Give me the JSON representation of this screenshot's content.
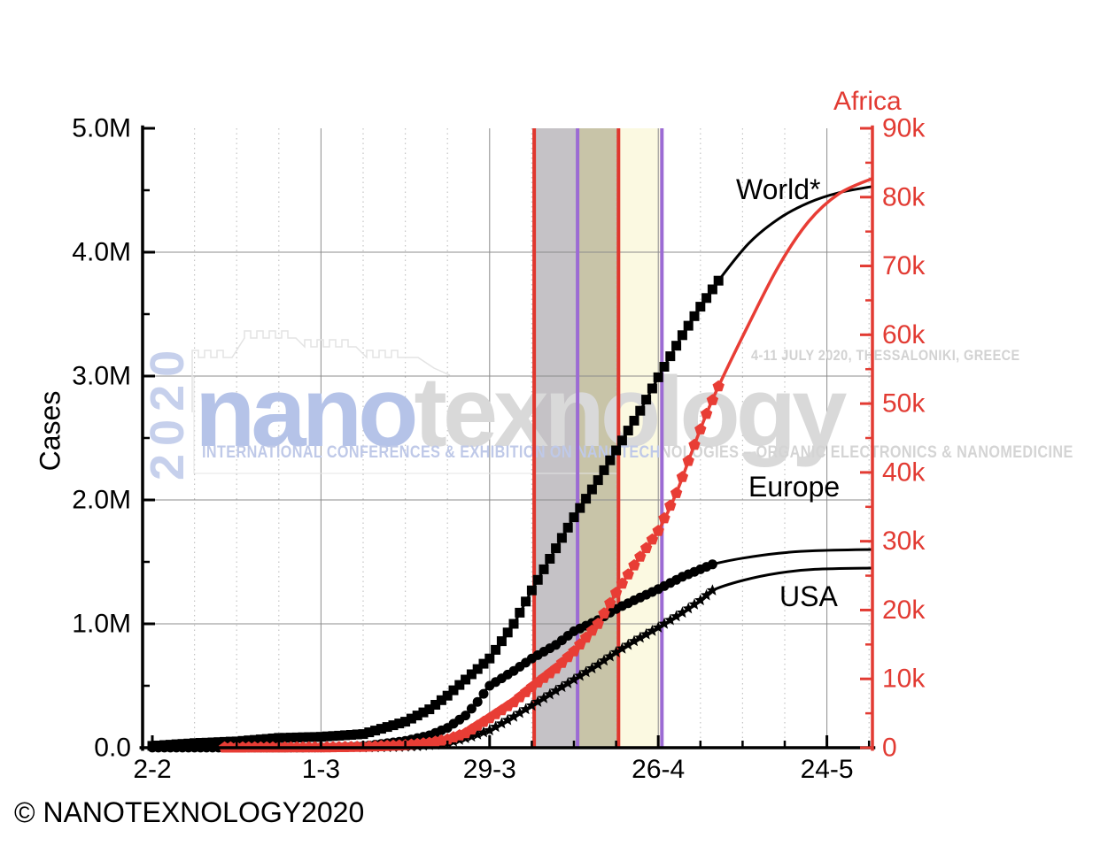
{
  "page": {
    "footer": "© NANOTEXNOLOGY2020",
    "background": "#ffffff"
  },
  "watermark": {
    "year_vertical": "2020",
    "logo_primary": "nano",
    "logo_secondary": "texnology",
    "subtitle_primary": "INTERNATIONAL CONFERENCES & EXHIBITION ON NANOTECH",
    "subtitle_secondary": "NOLOGIES – ORGANIC ELECTRONICS & NANOMEDICINE",
    "event_info": "4-11 JULY 2020, THESSALONIKI, GREECE",
    "colors": {
      "blue": "#b5c3e8",
      "gray": "#d9d9d9"
    }
  },
  "chart_data": {
    "type": "line",
    "title": "",
    "x_axis": {
      "tick_labels": [
        "2-2",
        "1-3",
        "29-3",
        "26-4",
        "24-5"
      ],
      "tick_days": [
        0,
        28,
        56,
        84,
        112
      ],
      "minor_step_days": 7,
      "note": "dates are day-month 2020; day 0 = 2-2"
    },
    "y_left": {
      "label": "Cases",
      "tick_labels": [
        "0.0",
        "1.0M",
        "2.0M",
        "3.0M",
        "4.0M",
        "5.0M"
      ],
      "tick_values": [
        0,
        1,
        2,
        3,
        4,
        5
      ],
      "minor_step": 0.5,
      "max": 5,
      "unit": "millions of cases",
      "color": "#000000"
    },
    "y_right": {
      "label": "Africa",
      "tick_labels": [
        "0",
        "10k",
        "20k",
        "30k",
        "40k",
        "50k",
        "60k",
        "70k",
        "80k",
        "90k"
      ],
      "tick_values": [
        0,
        10,
        20,
        30,
        40,
        50,
        60,
        70,
        80,
        90
      ],
      "minor_step": 5,
      "max": 90,
      "unit": "thousands of cases",
      "color": "#e23b33"
    },
    "bands": [
      {
        "from_day": 63.4,
        "to_day": 70.6,
        "color": "#c5c2c6",
        "from_date": "5-4",
        "to_date": "12-4"
      },
      {
        "from_day": 70.6,
        "to_day": 77.4,
        "color": "#c8c4a8",
        "from_date": "12-4",
        "to_date": "19-4"
      },
      {
        "from_day": 77.4,
        "to_day": 84.6,
        "color": "#fbf9e1",
        "from_date": "19-4",
        "to_date": "26-4"
      }
    ],
    "vlines": [
      {
        "day": 63.4,
        "date": "5-4",
        "color": "#e0372e"
      },
      {
        "day": 70.6,
        "date": "12-4",
        "color": "#9c6bd4"
      },
      {
        "day": 77.4,
        "date": "19-4",
        "color": "#e0372e"
      },
      {
        "day": 84.6,
        "date": "26-4",
        "color": "#9c6bd4"
      }
    ],
    "grid": {
      "h_major": true,
      "v_major_solid": true,
      "v_minor_dotted": true
    },
    "legend_position": "labels beside curves",
    "series": [
      {
        "name": "World*",
        "axis": "left",
        "unit": "M",
        "color": "#000000",
        "marker": "square",
        "marker_start_day": 0,
        "marker_end_day": 94,
        "anchors": [
          [
            0,
            0.015
          ],
          [
            7,
            0.037
          ],
          [
            14,
            0.051
          ],
          [
            21,
            0.079
          ],
          [
            28,
            0.088
          ],
          [
            35,
            0.11
          ],
          [
            42,
            0.21
          ],
          [
            46,
            0.31
          ],
          [
            49,
            0.42
          ],
          [
            52,
            0.55
          ],
          [
            56,
            0.72
          ],
          [
            60,
            1.0
          ],
          [
            63,
            1.27
          ],
          [
            67,
            1.61
          ],
          [
            70,
            1.86
          ],
          [
            74,
            2.16
          ],
          [
            77,
            2.4
          ],
          [
            81,
            2.72
          ],
          [
            84,
            2.99
          ],
          [
            88,
            3.33
          ],
          [
            91,
            3.56
          ],
          [
            94,
            3.77
          ],
          [
            99,
            4.07
          ],
          [
            104,
            4.27
          ],
          [
            109,
            4.4
          ],
          [
            114,
            4.48
          ],
          [
            119.5,
            4.53
          ]
        ]
      },
      {
        "name": "Europe",
        "axis": "left",
        "unit": "M",
        "color": "#000000",
        "marker": "circle",
        "marker_start_day": 0,
        "marker_end_day": 93,
        "anchors": [
          [
            0,
            0.001
          ],
          [
            14,
            0.001
          ],
          [
            28,
            0.002
          ],
          [
            35,
            0.012
          ],
          [
            42,
            0.055
          ],
          [
            46,
            0.1
          ],
          [
            49,
            0.16
          ],
          [
            52,
            0.26
          ],
          [
            54,
            0.37
          ],
          [
            56,
            0.5
          ],
          [
            60,
            0.62
          ],
          [
            63,
            0.72
          ],
          [
            67,
            0.83
          ],
          [
            70,
            0.94
          ],
          [
            74,
            1.03
          ],
          [
            77,
            1.12
          ],
          [
            80,
            1.19
          ],
          [
            84,
            1.28
          ],
          [
            88,
            1.38
          ],
          [
            91,
            1.44
          ],
          [
            93,
            1.48
          ],
          [
            98,
            1.53
          ],
          [
            104,
            1.57
          ],
          [
            110,
            1.59
          ],
          [
            119.5,
            1.6
          ]
        ]
      },
      {
        "name": "USA",
        "axis": "left",
        "unit": "M",
        "color": "#000000",
        "marker": "star",
        "marker_start_day": 35,
        "marker_end_day": 93,
        "anchors": [
          [
            0,
            0
          ],
          [
            35,
            0.002
          ],
          [
            40,
            0.005
          ],
          [
            44,
            0.012
          ],
          [
            47,
            0.025
          ],
          [
            50,
            0.05
          ],
          [
            53,
            0.09
          ],
          [
            56,
            0.14
          ],
          [
            60,
            0.25
          ],
          [
            63,
            0.34
          ],
          [
            67,
            0.46
          ],
          [
            70,
            0.55
          ],
          [
            74,
            0.67
          ],
          [
            77,
            0.77
          ],
          [
            80,
            0.86
          ],
          [
            84,
            0.97
          ],
          [
            88,
            1.09
          ],
          [
            91,
            1.19
          ],
          [
            93,
            1.27
          ],
          [
            98,
            1.35
          ],
          [
            104,
            1.41
          ],
          [
            110,
            1.44
          ],
          [
            119.5,
            1.45
          ]
        ]
      },
      {
        "name": "Africa",
        "axis": "right",
        "unit": "k",
        "color": "#e83d35",
        "marker": "pentagon",
        "marker_start_day": 12,
        "marker_end_day": 94,
        "anchors": [
          [
            12,
            0.02
          ],
          [
            28,
            0.05
          ],
          [
            35,
            0.12
          ],
          [
            42,
            0.35
          ],
          [
            46,
            0.7
          ],
          [
            49,
            1.2
          ],
          [
            52,
            2.1
          ],
          [
            56,
            4.3
          ],
          [
            60,
            6.6
          ],
          [
            63,
            8.8
          ],
          [
            67,
            11.5
          ],
          [
            70,
            14
          ],
          [
            74,
            18
          ],
          [
            77,
            22.5
          ],
          [
            80,
            26.5
          ],
          [
            84,
            31.5
          ],
          [
            87,
            37
          ],
          [
            90,
            44
          ],
          [
            92,
            48.5
          ],
          [
            94,
            52.5
          ],
          [
            99,
            61.5
          ],
          [
            104,
            70
          ],
          [
            109,
            76.5
          ],
          [
            114,
            80.5
          ],
          [
            119.5,
            82.7
          ]
        ]
      }
    ]
  }
}
